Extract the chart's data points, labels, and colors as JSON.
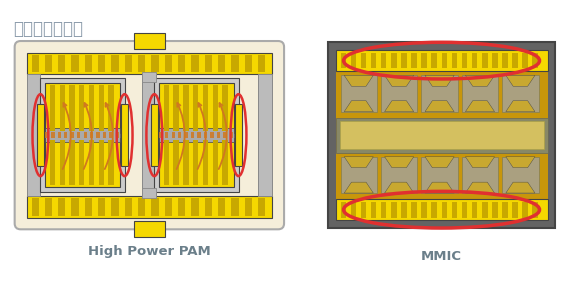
{
  "title": "功率放大器模块",
  "title_color": "#8a9aaa",
  "title_fontsize": 12,
  "bg_color": "#ffffff",
  "label1": "High Power PAM",
  "label2": "MMIC",
  "label_color": "#6b7f8a",
  "label_fontsize": 9.5,
  "yellow": "#f5d800",
  "yellow_stripe": "#c8a800",
  "yellow_dot": "#d4b000",
  "gray_frame": "#888888",
  "gray_light": "#bbbbbb",
  "gray_mid": "#999999",
  "beige": "#f5eeda",
  "red": "#e03030",
  "orange": "#d07820",
  "dark": "#444444",
  "mmic_bg": "#6e6e6e",
  "mmic_inner_bg": "#c8a020",
  "white": "#ffffff"
}
